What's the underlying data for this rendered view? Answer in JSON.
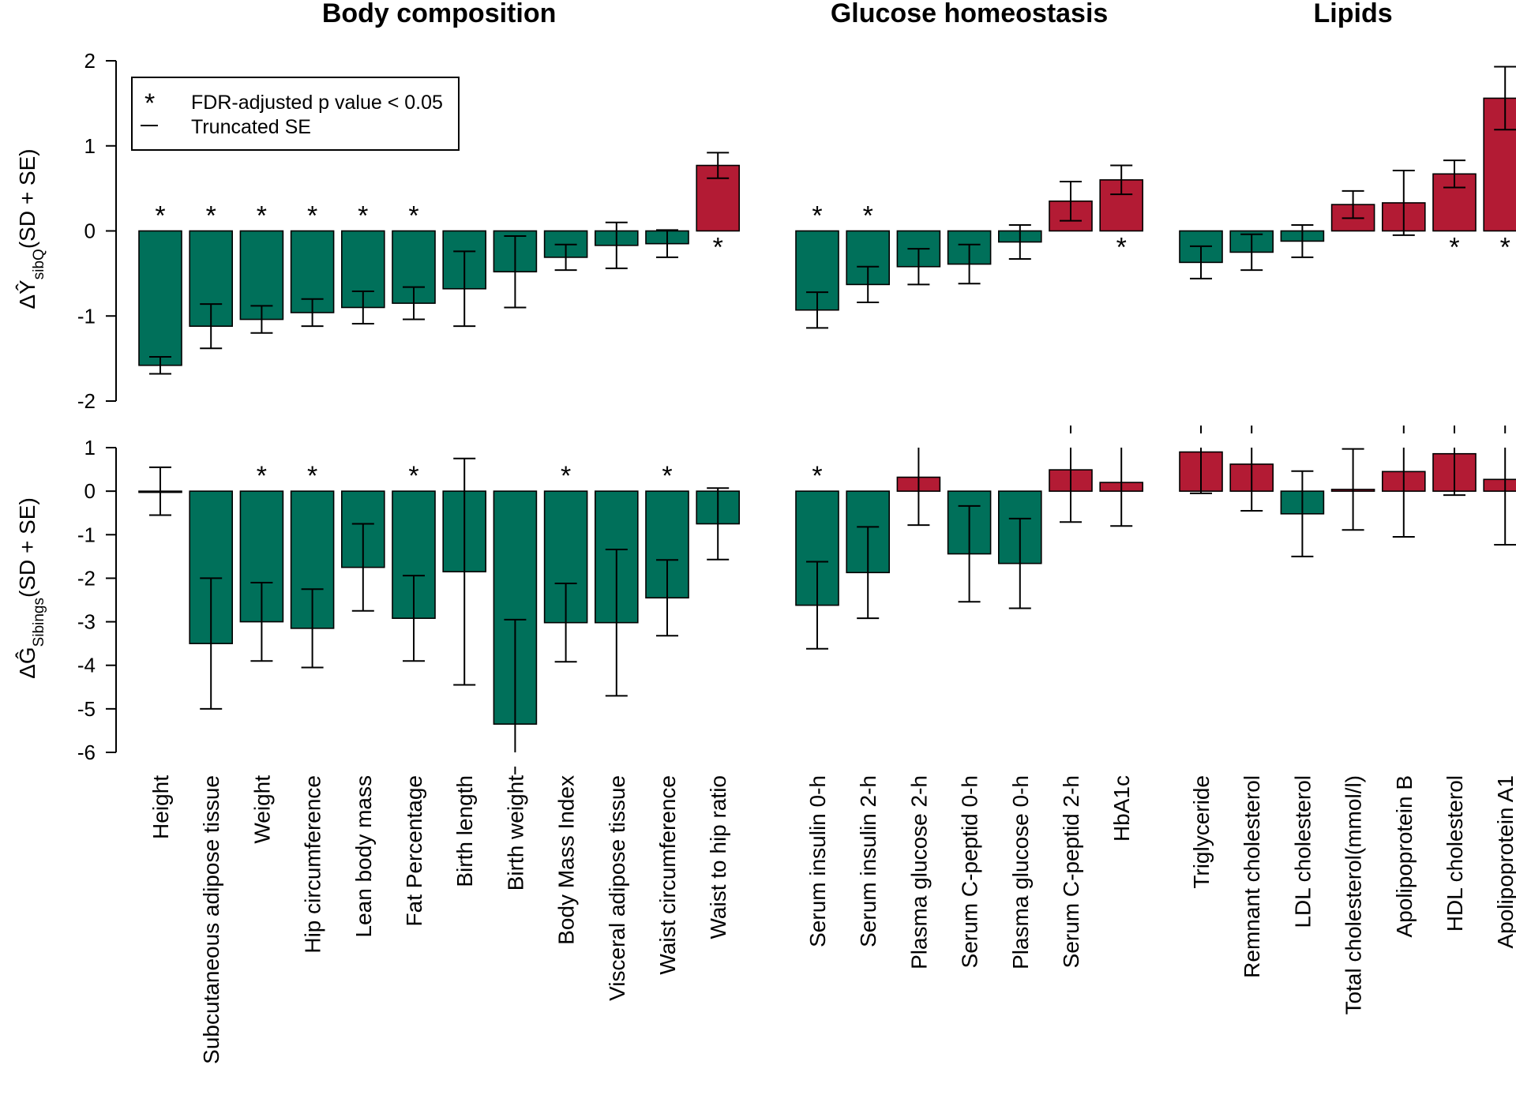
{
  "colors": {
    "negative": "#00705A",
    "positive": "#B31B34",
    "axis": "#000000"
  },
  "legend": {
    "star_label": "FDR-adjusted p value < 0.05",
    "dash_label": "Truncated SE"
  },
  "y_labels": {
    "top": {
      "prefix": "ΔŶ",
      "sub": "sibQ",
      "suffix": "(SD + SE)"
    },
    "bottom": {
      "prefix": "ΔĜ",
      "sub": "Sibings",
      "suffix": "(SD + SE)"
    }
  },
  "chart_data": {
    "type": "bar",
    "groups": [
      {
        "title": "Body composition",
        "start": 0,
        "end": 11
      },
      {
        "title": "Glucose homeostasis",
        "start": 12,
        "end": 18
      },
      {
        "title": "Lipids",
        "start": 19,
        "end": 25
      }
    ],
    "categories": [
      "Height",
      "Subcutaneous adipose tissue",
      "Weight",
      "Hip circumference",
      "Lean body mass",
      "Fat Percentage",
      "Birth length",
      "Birth weight",
      "Body Mass Index",
      "Visceral adipose tissue",
      "Waist circumference",
      "Waist to hip ratio",
      "Serum insulin 0-h",
      "Serum insulin 2-h",
      "Plasma glucose 2-h",
      "Serum C-peptid 0-h",
      "Plasma glucose 0-h",
      "Serum C-peptid 2-h",
      "HbA1c",
      "Triglyceride",
      "Remnant cholesterol",
      "LDL cholesterol",
      "Total cholesterol(mmol/l)",
      "Apolipoprotein B",
      "HDL cholesterol",
      "Apolipoprotein A1"
    ],
    "panels": [
      {
        "name": "top",
        "ylim": [
          -2,
          2
        ],
        "yticks": [
          -2,
          -1,
          0,
          1,
          2
        ],
        "values": [
          -1.58,
          -1.12,
          -1.04,
          -0.96,
          -0.9,
          -0.85,
          -0.68,
          -0.48,
          -0.31,
          -0.17,
          -0.15,
          0.77,
          -0.93,
          -0.63,
          -0.42,
          -0.39,
          -0.13,
          0.35,
          0.6,
          -0.37,
          -0.25,
          -0.12,
          0.31,
          0.33,
          0.67,
          1.56
        ],
        "se": [
          0.1,
          0.26,
          0.16,
          0.16,
          0.19,
          0.19,
          0.44,
          0.42,
          0.15,
          0.27,
          0.16,
          0.15,
          0.21,
          0.21,
          0.21,
          0.23,
          0.2,
          0.23,
          0.17,
          0.19,
          0.21,
          0.19,
          0.16,
          0.38,
          0.16,
          0.37
        ],
        "significant": [
          true,
          true,
          true,
          true,
          true,
          true,
          false,
          false,
          false,
          false,
          false,
          true,
          true,
          true,
          false,
          false,
          false,
          false,
          true,
          false,
          false,
          false,
          false,
          false,
          true,
          true
        ],
        "truncated": [
          false,
          false,
          false,
          false,
          false,
          false,
          false,
          false,
          false,
          false,
          false,
          false,
          false,
          false,
          false,
          false,
          false,
          false,
          false,
          false,
          false,
          false,
          false,
          false,
          false,
          false
        ]
      },
      {
        "name": "bottom",
        "ylim": [
          -6,
          1
        ],
        "yticks": [
          -6,
          -5,
          -4,
          -3,
          -2,
          -1,
          0,
          1
        ],
        "values": [
          0.0,
          -3.5,
          -3.0,
          -3.15,
          -1.75,
          -2.92,
          -1.85,
          -5.35,
          -3.02,
          -3.02,
          -2.45,
          -0.75,
          -2.62,
          -1.87,
          0.32,
          -1.44,
          -1.66,
          0.49,
          0.2,
          0.9,
          0.62,
          -0.52,
          0.04,
          0.45,
          0.86,
          0.27
        ],
        "se": [
          0.55,
          1.5,
          0.9,
          0.9,
          1.0,
          0.98,
          2.6,
          2.4,
          0.9,
          1.68,
          0.87,
          0.82,
          1.0,
          1.05,
          1.1,
          1.1,
          1.03,
          1.2,
          1.0,
          0.95,
          1.07,
          0.98,
          0.93,
          1.5,
          0.95,
          1.5
        ],
        "significant": [
          false,
          false,
          true,
          true,
          false,
          true,
          false,
          false,
          true,
          false,
          true,
          false,
          true,
          false,
          false,
          false,
          false,
          false,
          false,
          false,
          false,
          false,
          false,
          false,
          false,
          false
        ],
        "truncated": [
          false,
          false,
          false,
          false,
          false,
          false,
          false,
          true,
          false,
          false,
          false,
          false,
          false,
          false,
          false,
          false,
          false,
          true,
          false,
          true,
          true,
          false,
          false,
          true,
          true,
          true
        ]
      }
    ]
  }
}
